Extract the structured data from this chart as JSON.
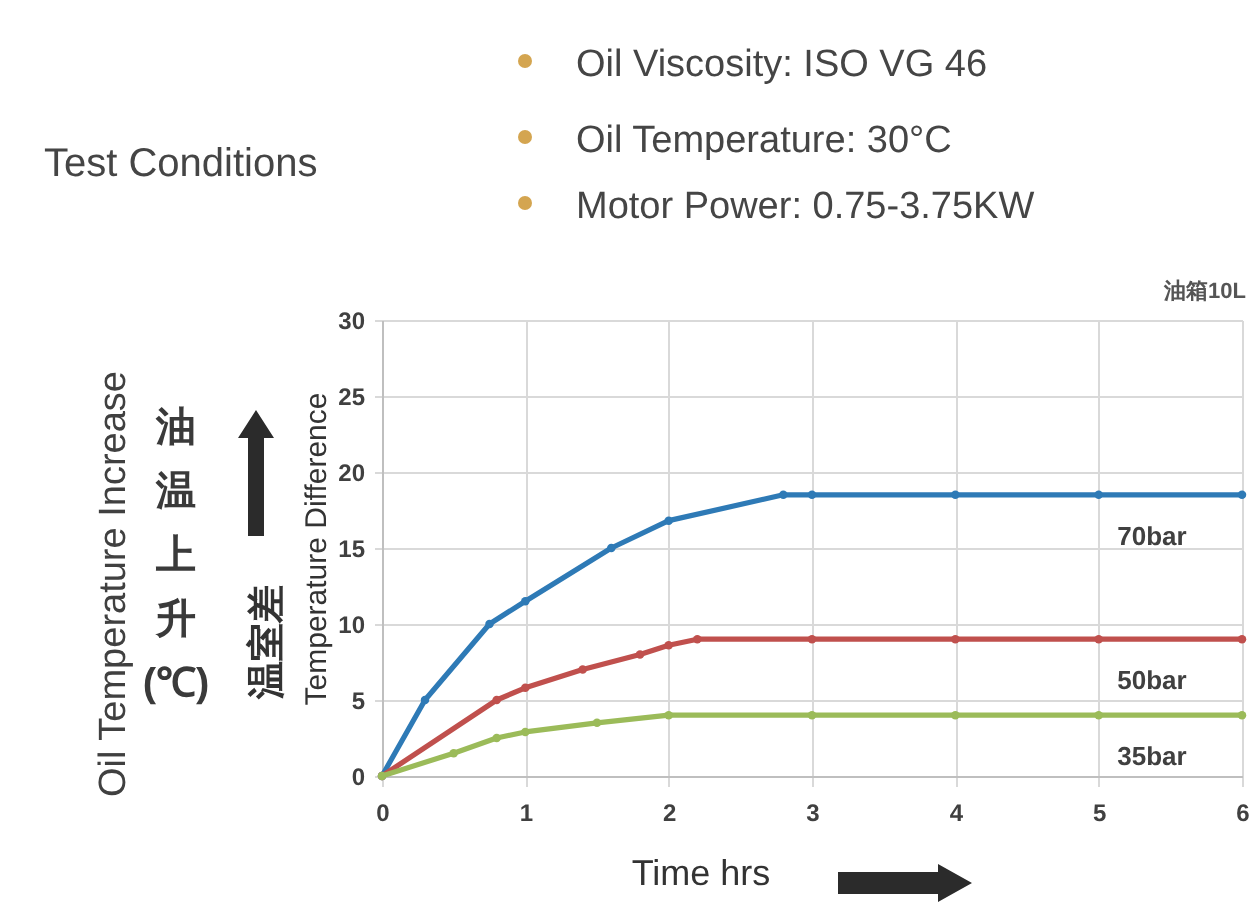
{
  "chart_data": {
    "type": "line",
    "title": "Test Conditions",
    "xlabel": "Time hrs",
    "ylabel": "Temperature Difference",
    "annotations": [
      "Oil Viscosity: ISO VG 46",
      "Oil Temperature: 30°C",
      "Motor Power: 0.75-3.75KW",
      "Oil Temperature Increase",
      "油温上升(℃)",
      "温室差",
      "油箱10L"
    ],
    "xlim": [
      0,
      6
    ],
    "xticks": [
      0,
      1,
      2,
      3,
      4,
      5,
      6
    ],
    "ylim": [
      0,
      30
    ],
    "yticks": [
      0,
      5,
      10,
      15,
      20,
      25,
      30
    ],
    "grid": true,
    "marker": "circle",
    "line_style": "solid",
    "series": [
      {
        "name": "70bar",
        "color": "#2e7ab6",
        "x": [
          0,
          0.3,
          0.75,
          1,
          1.6,
          2,
          2.8,
          3,
          4,
          5,
          6
        ],
        "values": [
          0,
          5,
          10,
          11.5,
          15,
          16.8,
          18.5,
          18.5,
          18.5,
          18.5,
          18.5
        ]
      },
      {
        "name": "50bar",
        "color": "#c0504d",
        "x": [
          0,
          0.8,
          1,
          1.4,
          1.8,
          2,
          2.2,
          3,
          4,
          5,
          6
        ],
        "values": [
          0,
          5,
          5.8,
          7,
          8,
          8.6,
          9,
          9,
          9,
          9,
          9
        ]
      },
      {
        "name": "35bar",
        "color": "#9bbb59",
        "x": [
          0,
          0.5,
          0.8,
          1,
          1.5,
          2,
          3,
          4,
          5,
          6
        ],
        "values": [
          0,
          1.5,
          2.5,
          2.9,
          3.5,
          4,
          4,
          4,
          4,
          4
        ]
      }
    ]
  }
}
